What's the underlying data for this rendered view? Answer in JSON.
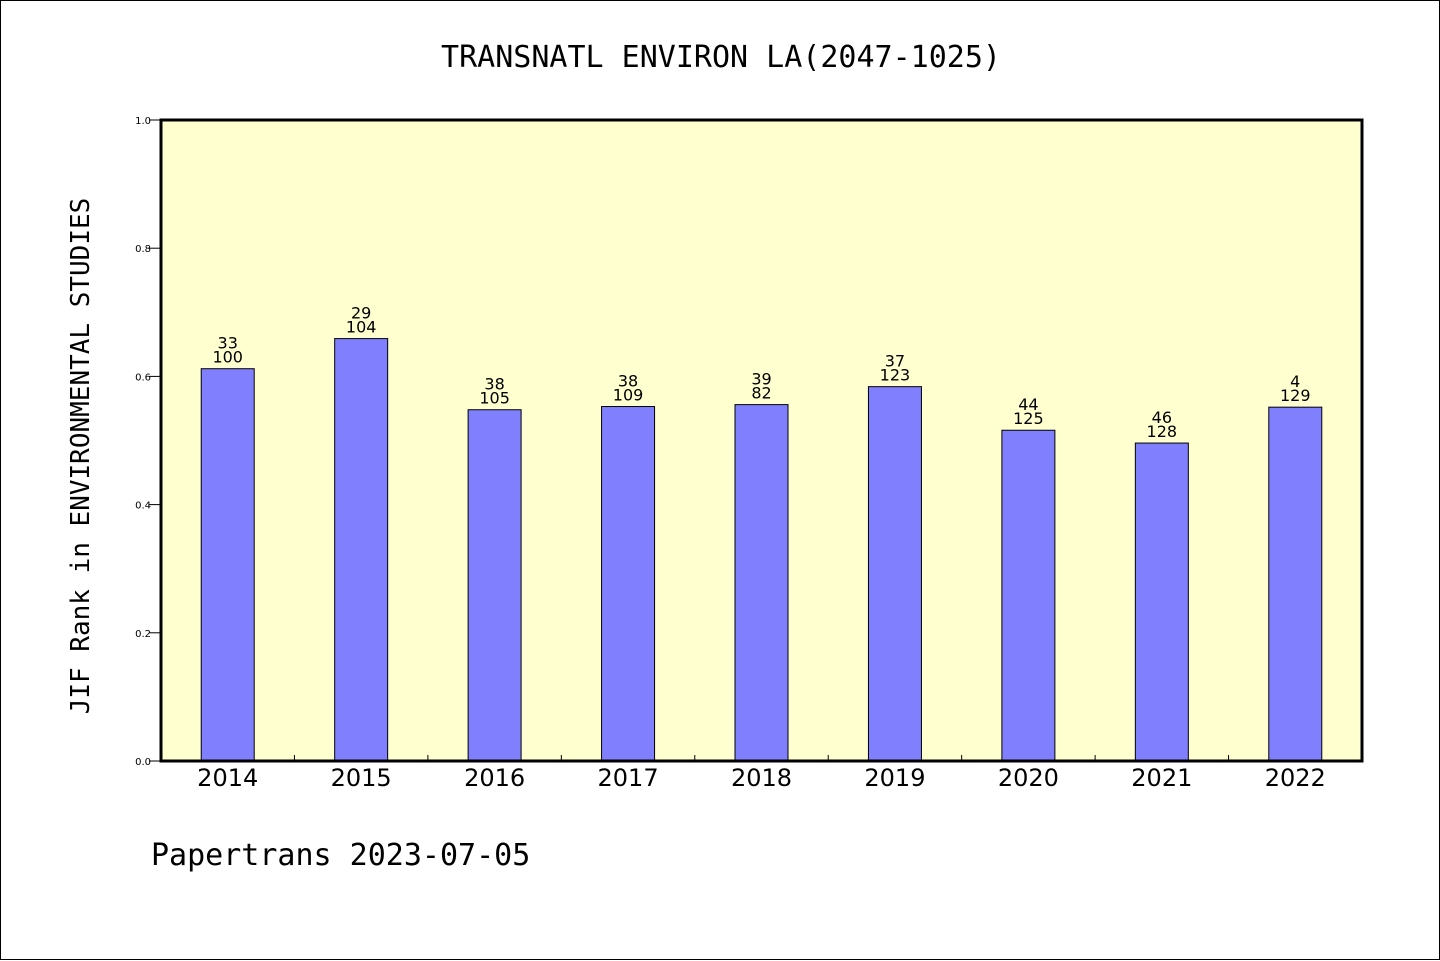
{
  "chart_data": {
    "type": "bar",
    "title": "TRANSNATL ENVIRON LA(2047-1025)",
    "ylabel": "JIF Rank in ENVIRONMENTAL STUDIES",
    "xlabel": "",
    "ylim": [
      0,
      1.0
    ],
    "yticks": [
      "0.0",
      "0.2",
      "0.4",
      "0.6",
      "0.8",
      "1.0"
    ],
    "categories": [
      "2014",
      "2015",
      "2016",
      "2017",
      "2018",
      "2019",
      "2020",
      "2021",
      "2022"
    ],
    "values": [
      0.612,
      0.659,
      0.548,
      0.553,
      0.556,
      0.584,
      0.516,
      0.496,
      0.552
    ],
    "rank": [
      "33",
      "29",
      "38",
      "38",
      "39",
      "37",
      "44",
      "46",
      "4"
    ],
    "total": [
      "100",
      "104",
      "105",
      "109",
      "82",
      "123",
      "125",
      "128",
      "129"
    ],
    "bar_color": "#8080ff",
    "plot_background": "#ffffd0",
    "grid": false
  },
  "footer": "Papertrans 2023-07-05"
}
